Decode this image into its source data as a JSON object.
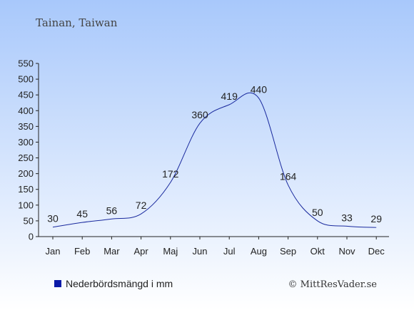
{
  "chart_data": {
    "type": "line",
    "title": "Tainan, Taiwan",
    "categories": [
      "Jan",
      "Feb",
      "Mar",
      "Apr",
      "Maj",
      "Jun",
      "Jul",
      "Aug",
      "Sep",
      "Okt",
      "Nov",
      "Dec"
    ],
    "series": [
      {
        "name": "Nederbördsmängd i mm",
        "values": [
          30,
          45,
          56,
          72,
          172,
          360,
          419,
          440,
          164,
          50,
          33,
          29
        ],
        "color": "#1a2a9e"
      }
    ],
    "ylim": [
      0,
      550
    ],
    "yticks": [
      0,
      50,
      100,
      150,
      200,
      250,
      300,
      350,
      400,
      450,
      500,
      550
    ],
    "grid": false,
    "legend_position": "bottom-left"
  },
  "credit": "© MittResVader.se",
  "colors": {
    "background_top": "#a8c8fb",
    "background_bottom": "#ffffff",
    "line": "#1a2a9e",
    "legend_marker": "#0a1aa8",
    "text": "#222222"
  }
}
